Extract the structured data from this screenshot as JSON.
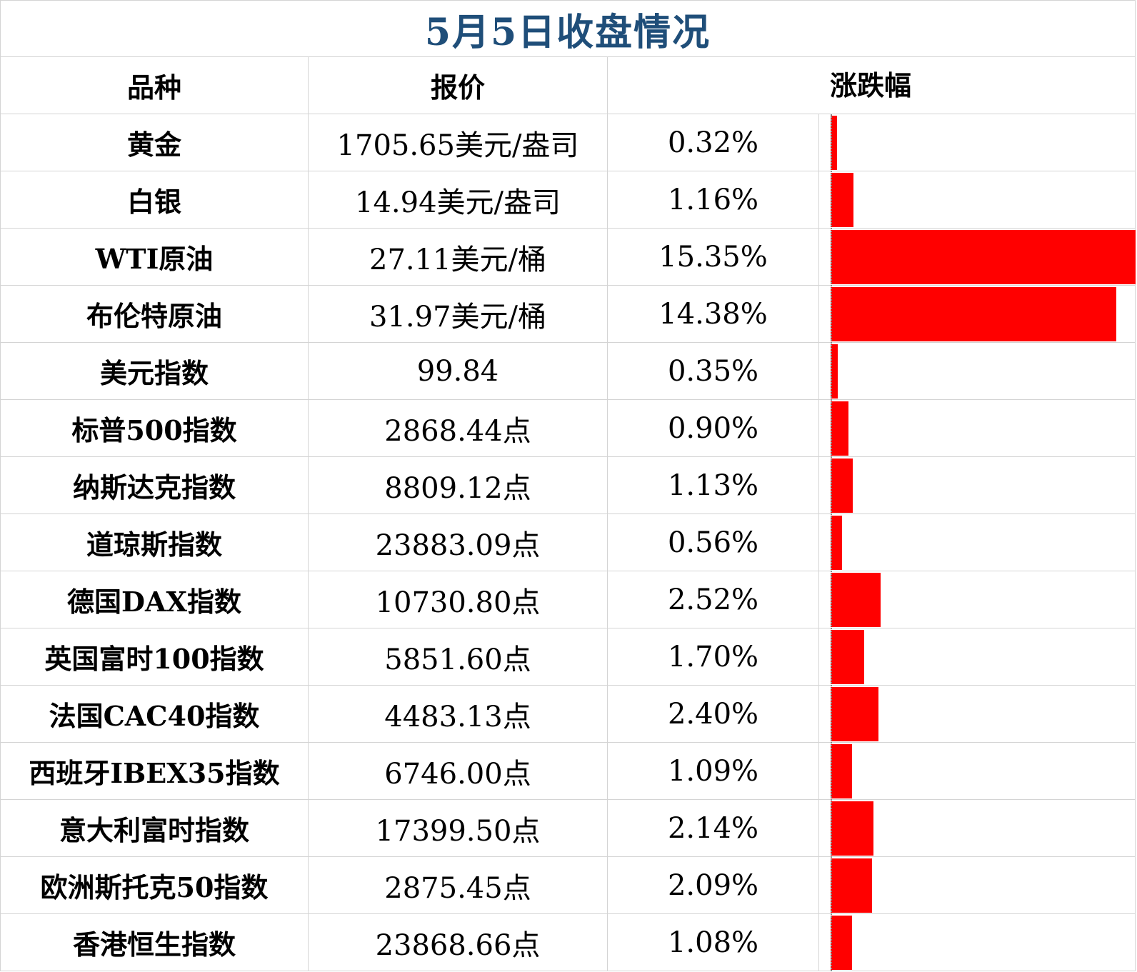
{
  "title": "5月5日收盘情况",
  "headers": {
    "name": "品种",
    "price": "报价",
    "change": "涨跌幅"
  },
  "chart_data": {
    "type": "table",
    "bar_column": "涨跌幅",
    "bar_color": "#ff0000",
    "title_color": "#1f4e79",
    "rows": [
      {
        "name": "黄金",
        "price": "1705.65美元/盎司",
        "pct_text": "0.32%",
        "pct": 0.32
      },
      {
        "name": "白银",
        "price": "14.94美元/盎司",
        "pct_text": "1.16%",
        "pct": 1.16
      },
      {
        "name": "WTI原油",
        "price": "27.11美元/桶",
        "pct_text": "15.35%",
        "pct": 15.35
      },
      {
        "name": "布伦特原油",
        "price": "31.97美元/桶",
        "pct_text": "14.38%",
        "pct": 14.38
      },
      {
        "name": "美元指数",
        "price": "99.84",
        "pct_text": "0.35%",
        "pct": 0.35
      },
      {
        "name": "标普500指数",
        "price": "2868.44点",
        "pct_text": "0.90%",
        "pct": 0.9
      },
      {
        "name": "纳斯达克指数",
        "price": "8809.12点",
        "pct_text": "1.13%",
        "pct": 1.13
      },
      {
        "name": "道琼斯指数",
        "price": "23883.09点",
        "pct_text": "0.56%",
        "pct": 0.56
      },
      {
        "name": "德国DAX指数",
        "price": "10730.80点",
        "pct_text": "2.52%",
        "pct": 2.52
      },
      {
        "name": "英国富时100指数",
        "price": "5851.60点",
        "pct_text": "1.70%",
        "pct": 1.7
      },
      {
        "name": "法国CAC40指数",
        "price": "4483.13点",
        "pct_text": "2.40%",
        "pct": 2.4
      },
      {
        "name": "西班牙IBEX35指数",
        "price": "6746.00点",
        "pct_text": "1.09%",
        "pct": 1.09
      },
      {
        "name": "意大利富时指数",
        "price": "17399.50点",
        "pct_text": "2.14%",
        "pct": 2.14
      },
      {
        "name": "欧洲斯托克50指数",
        "price": "2875.45点",
        "pct_text": "2.09%",
        "pct": 2.09
      },
      {
        "name": "香港恒生指数",
        "price": "23868.66点",
        "pct_text": "1.08%",
        "pct": 1.08
      }
    ]
  }
}
